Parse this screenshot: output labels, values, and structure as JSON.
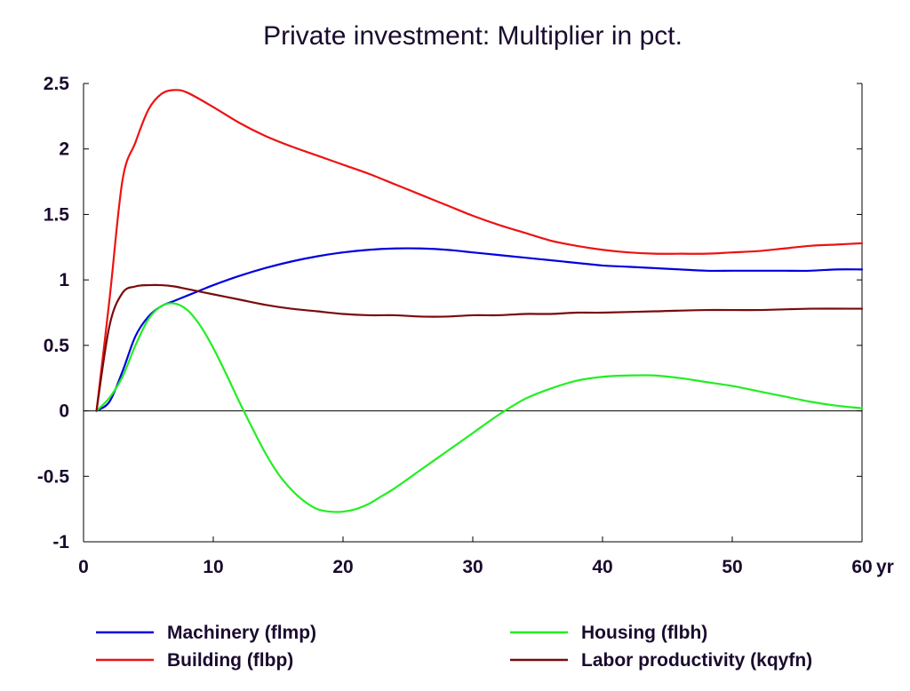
{
  "chart_data": {
    "type": "line",
    "title": "Private investment: Multiplier in pct.",
    "xlabel": "",
    "x_unit": "yr",
    "ylabel": "",
    "xlim": [
      0,
      60
    ],
    "ylim": [
      -1,
      2.5
    ],
    "xticks": [
      0,
      10,
      20,
      30,
      40,
      50,
      60
    ],
    "xtick_labels": [
      "0",
      "10",
      "20",
      "30",
      "40",
      "50",
      "60"
    ],
    "yticks": [
      -1,
      -0.5,
      0,
      0.5,
      1,
      1.5,
      2,
      2.5
    ],
    "ytick_labels": [
      "-1",
      "-0.5",
      "0",
      "0.5",
      "1",
      "1.5",
      "2",
      "2.5"
    ],
    "zero_line": true,
    "grid": false,
    "legend_position": "bottom",
    "series": [
      {
        "name": "Machinery (flmp)",
        "color": "#0000e0",
        "points": [
          [
            1,
            0
          ],
          [
            2,
            0.07
          ],
          [
            3,
            0.3
          ],
          [
            4,
            0.57
          ],
          [
            5,
            0.72
          ],
          [
            6,
            0.8
          ],
          [
            7,
            0.84
          ],
          [
            8,
            0.88
          ],
          [
            9,
            0.92
          ],
          [
            10,
            0.96
          ],
          [
            12,
            1.03
          ],
          [
            14,
            1.09
          ],
          [
            16,
            1.14
          ],
          [
            18,
            1.18
          ],
          [
            20,
            1.21
          ],
          [
            22,
            1.23
          ],
          [
            24,
            1.24
          ],
          [
            26,
            1.24
          ],
          [
            28,
            1.23
          ],
          [
            30,
            1.21
          ],
          [
            32,
            1.19
          ],
          [
            34,
            1.17
          ],
          [
            36,
            1.15
          ],
          [
            38,
            1.13
          ],
          [
            40,
            1.11
          ],
          [
            42,
            1.1
          ],
          [
            44,
            1.09
          ],
          [
            46,
            1.08
          ],
          [
            48,
            1.07
          ],
          [
            50,
            1.07
          ],
          [
            52,
            1.07
          ],
          [
            54,
            1.07
          ],
          [
            56,
            1.07
          ],
          [
            58,
            1.08
          ],
          [
            60,
            1.08
          ]
        ]
      },
      {
        "name": "Building (flbp)",
        "color": "#ee1111",
        "points": [
          [
            1,
            0
          ],
          [
            2,
            0.85
          ],
          [
            3,
            1.76
          ],
          [
            4,
            2.05
          ],
          [
            5,
            2.3
          ],
          [
            6,
            2.42
          ],
          [
            7,
            2.45
          ],
          [
            8,
            2.43
          ],
          [
            10,
            2.32
          ],
          [
            12,
            2.2
          ],
          [
            14,
            2.1
          ],
          [
            16,
            2.02
          ],
          [
            18,
            1.95
          ],
          [
            20,
            1.88
          ],
          [
            22,
            1.81
          ],
          [
            24,
            1.73
          ],
          [
            26,
            1.65
          ],
          [
            28,
            1.57
          ],
          [
            30,
            1.49
          ],
          [
            32,
            1.42
          ],
          [
            34,
            1.36
          ],
          [
            36,
            1.3
          ],
          [
            38,
            1.26
          ],
          [
            40,
            1.23
          ],
          [
            42,
            1.21
          ],
          [
            44,
            1.2
          ],
          [
            46,
            1.2
          ],
          [
            48,
            1.2
          ],
          [
            50,
            1.21
          ],
          [
            52,
            1.22
          ],
          [
            54,
            1.24
          ],
          [
            56,
            1.26
          ],
          [
            58,
            1.27
          ],
          [
            60,
            1.28
          ]
        ]
      },
      {
        "name": "Housing (flbh)",
        "color": "#22ee22",
        "points": [
          [
            1,
            0
          ],
          [
            2,
            0.1
          ],
          [
            3,
            0.26
          ],
          [
            4,
            0.5
          ],
          [
            5,
            0.7
          ],
          [
            6,
            0.8
          ],
          [
            7,
            0.82
          ],
          [
            8,
            0.77
          ],
          [
            9,
            0.65
          ],
          [
            10,
            0.48
          ],
          [
            11,
            0.28
          ],
          [
            12,
            0.07
          ],
          [
            13,
            -0.13
          ],
          [
            14,
            -0.32
          ],
          [
            15,
            -0.48
          ],
          [
            16,
            -0.6
          ],
          [
            17,
            -0.69
          ],
          [
            18,
            -0.75
          ],
          [
            19,
            -0.77
          ],
          [
            20,
            -0.77
          ],
          [
            21,
            -0.75
          ],
          [
            22,
            -0.71
          ],
          [
            23,
            -0.65
          ],
          [
            24,
            -0.59
          ],
          [
            26,
            -0.45
          ],
          [
            28,
            -0.31
          ],
          [
            30,
            -0.17
          ],
          [
            32,
            -0.03
          ],
          [
            34,
            0.09
          ],
          [
            36,
            0.17
          ],
          [
            38,
            0.23
          ],
          [
            40,
            0.26
          ],
          [
            42,
            0.27
          ],
          [
            44,
            0.27
          ],
          [
            46,
            0.25
          ],
          [
            48,
            0.22
          ],
          [
            50,
            0.19
          ],
          [
            52,
            0.15
          ],
          [
            54,
            0.11
          ],
          [
            56,
            0.07
          ],
          [
            58,
            0.04
          ],
          [
            60,
            0.02
          ]
        ]
      },
      {
        "name": "Labor productivity (kqyfn)",
        "color": "#7a0a0a",
        "points": [
          [
            1,
            0
          ],
          [
            2,
            0.65
          ],
          [
            3,
            0.9
          ],
          [
            4,
            0.95
          ],
          [
            5,
            0.96
          ],
          [
            6,
            0.96
          ],
          [
            7,
            0.95
          ],
          [
            8,
            0.93
          ],
          [
            10,
            0.89
          ],
          [
            12,
            0.85
          ],
          [
            14,
            0.81
          ],
          [
            16,
            0.78
          ],
          [
            18,
            0.76
          ],
          [
            20,
            0.74
          ],
          [
            22,
            0.73
          ],
          [
            24,
            0.73
          ],
          [
            26,
            0.72
          ],
          [
            28,
            0.72
          ],
          [
            30,
            0.73
          ],
          [
            32,
            0.73
          ],
          [
            34,
            0.74
          ],
          [
            36,
            0.74
          ],
          [
            38,
            0.75
          ],
          [
            40,
            0.75
          ],
          [
            44,
            0.76
          ],
          [
            48,
            0.77
          ],
          [
            52,
            0.77
          ],
          [
            56,
            0.78
          ],
          [
            60,
            0.78
          ]
        ]
      }
    ]
  }
}
